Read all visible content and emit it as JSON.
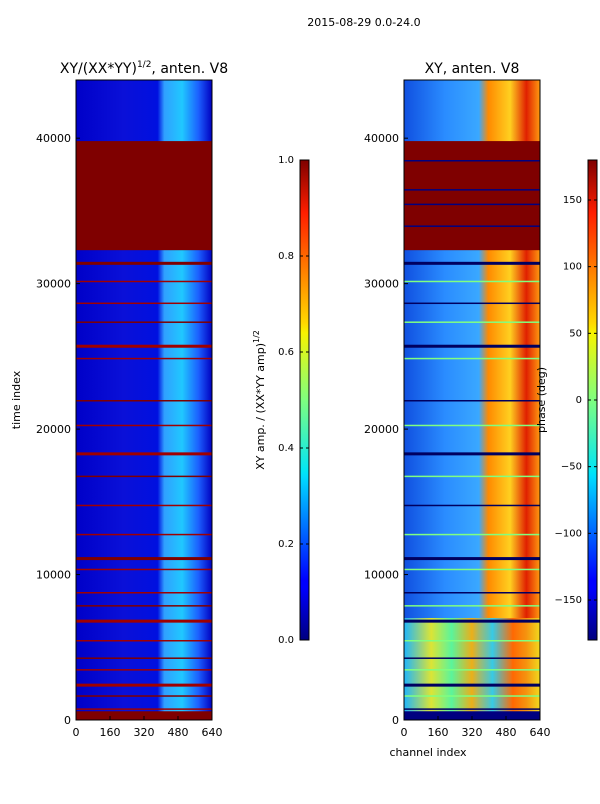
{
  "figure_title": "2015-08-29 0.0-24.0",
  "xlabel": "channel index",
  "ylabel": "time index",
  "chart_data": [
    {
      "type": "heatmap",
      "title": "XY/(XX*YY)^1/2, anten. V8",
      "title_main": "XY/(XX*YY)",
      "title_exp": "1/2",
      "title_tail": ", anten. V8",
      "x_range": [
        0,
        640
      ],
      "y_range": [
        0,
        44000
      ],
      "x_ticks": [
        0,
        160,
        320,
        480,
        640
      ],
      "y_ticks": [
        0,
        10000,
        20000,
        30000,
        40000
      ],
      "colorbar": {
        "label_main": "XY amp. / (XX*YY amp)",
        "label_exp": "1/2",
        "range": [
          0.0,
          1.0
        ],
        "ticks": [
          "0.0",
          "0.2",
          "0.4",
          "0.6",
          "0.8",
          "1.0"
        ]
      }
    },
    {
      "type": "heatmap",
      "title": "XY, anten. V8",
      "x_range": [
        0,
        640
      ],
      "y_range": [
        0,
        44000
      ],
      "x_ticks": [
        0,
        160,
        320,
        480,
        640
      ],
      "y_ticks": [
        0,
        10000,
        20000,
        30000,
        40000
      ],
      "colorbar": {
        "label": "phase (deg)",
        "range": [
          -180,
          180
        ],
        "ticks": [
          "−150",
          "−100",
          "−50",
          "0",
          "50",
          "100",
          "150"
        ]
      }
    }
  ]
}
